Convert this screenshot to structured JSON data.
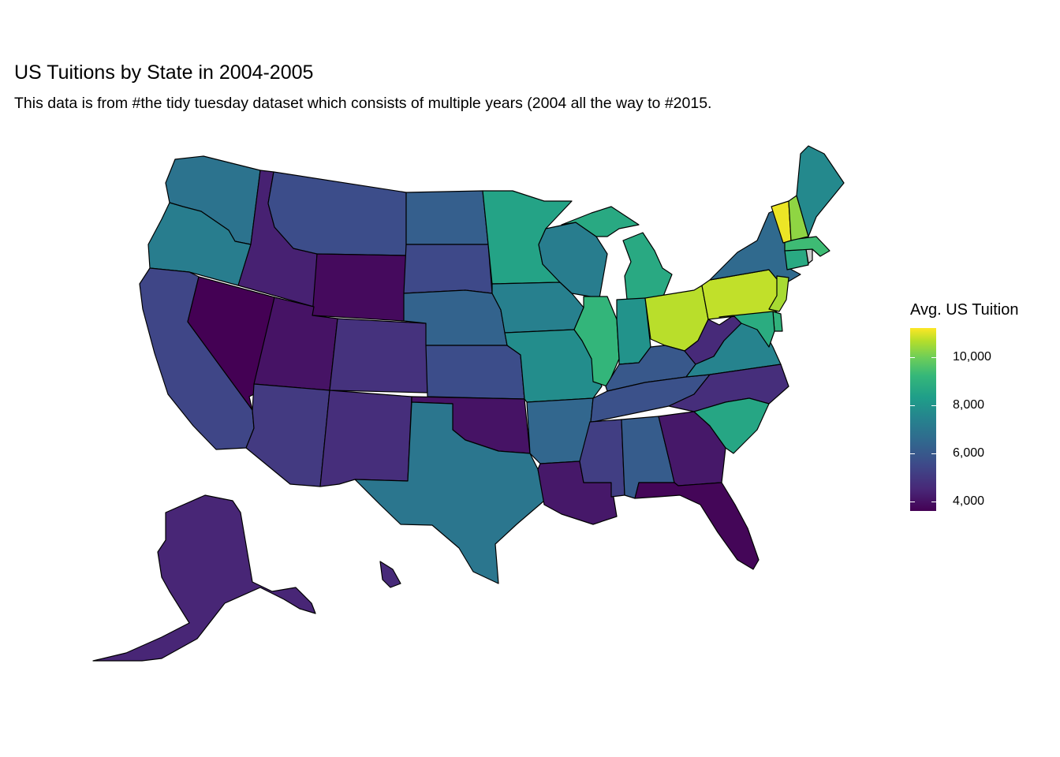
{
  "title": "US Tuitions by State in 2004-2005",
  "subtitle": "This data is from #the tidy tuesday dataset which consists of multiple years (2004 all the way to #2015.",
  "legend": {
    "title": "Avg. US Tuition",
    "min": 3600,
    "max": 11200,
    "ticks": [
      {
        "value": 4000,
        "label": "4,000"
      },
      {
        "value": 6000,
        "label": "6,000"
      },
      {
        "value": 8000,
        "label": "8,000"
      },
      {
        "value": 10000,
        "label": "10,000"
      }
    ]
  },
  "colors": {
    "low": "#440154",
    "high": "#fde725",
    "border": "#000000"
  },
  "map_data": {
    "type": "choropleth",
    "region": "US states",
    "states": [
      {
        "state": "Vermont",
        "value": 11000
      },
      {
        "state": "Pennsylvania",
        "value": 10500
      },
      {
        "state": "Ohio",
        "value": 10400
      },
      {
        "state": "New Hampshire",
        "value": 9900
      },
      {
        "state": "New Jersey",
        "value": 10200
      },
      {
        "state": "Massachusetts",
        "value": 8800
      },
      {
        "state": "Delaware",
        "value": 8500
      },
      {
        "state": "Illinois",
        "value": 8600
      },
      {
        "state": "Michigan",
        "value": 8200
      },
      {
        "state": "Minnesota",
        "value": 8000
      },
      {
        "state": "Maryland",
        "value": 8300
      },
      {
        "state": "Connecticut",
        "value": 8200
      },
      {
        "state": "South Carolina",
        "value": 8100
      },
      {
        "state": "Indiana",
        "value": 7500
      },
      {
        "state": "Missouri",
        "value": 7300
      },
      {
        "state": "Maine",
        "value": 7200
      },
      {
        "state": "Virginia",
        "value": 7000
      },
      {
        "state": "Iowa",
        "value": 6900
      },
      {
        "state": "Wisconsin",
        "value": 6800
      },
      {
        "state": "Oregon",
        "value": 6800
      },
      {
        "state": "Texas",
        "value": 6600
      },
      {
        "state": "Washington",
        "value": 6500
      },
      {
        "state": "New York",
        "value": 6200
      },
      {
        "state": "Arkansas",
        "value": 6100
      },
      {
        "state": "Nebraska",
        "value": 6000
      },
      {
        "state": "North Dakota",
        "value": 5900
      },
      {
        "state": "Alabama",
        "value": 5800
      },
      {
        "state": "Kentucky",
        "value": 5700
      },
      {
        "state": "Tennessee",
        "value": 5500
      },
      {
        "state": "Kansas",
        "value": 5400
      },
      {
        "state": "Montana",
        "value": 5400
      },
      {
        "state": "South Dakota",
        "value": 5300
      },
      {
        "state": "California",
        "value": 5200
      },
      {
        "state": "Mississippi",
        "value": 5000
      },
      {
        "state": "Arizona",
        "value": 4900
      },
      {
        "state": "New Mexico",
        "value": 4600
      },
      {
        "state": "Colorado",
        "value": 4700
      },
      {
        "state": "North Carolina",
        "value": 4600
      },
      {
        "state": "Hawaii",
        "value": 4500
      },
      {
        "state": "West Virginia",
        "value": 4500
      },
      {
        "state": "Alaska",
        "value": 4400
      },
      {
        "state": "Idaho",
        "value": 4300
      },
      {
        "state": "Louisiana",
        "value": 4100
      },
      {
        "state": "Georgia",
        "value": 4100
      },
      {
        "state": "Utah",
        "value": 4000
      },
      {
        "state": "Oklahoma",
        "value": 4000
      },
      {
        "state": "Wyoming",
        "value": 3800
      },
      {
        "state": "Florida",
        "value": 3700
      },
      {
        "state": "Nevada",
        "value": 3600
      }
    ]
  }
}
